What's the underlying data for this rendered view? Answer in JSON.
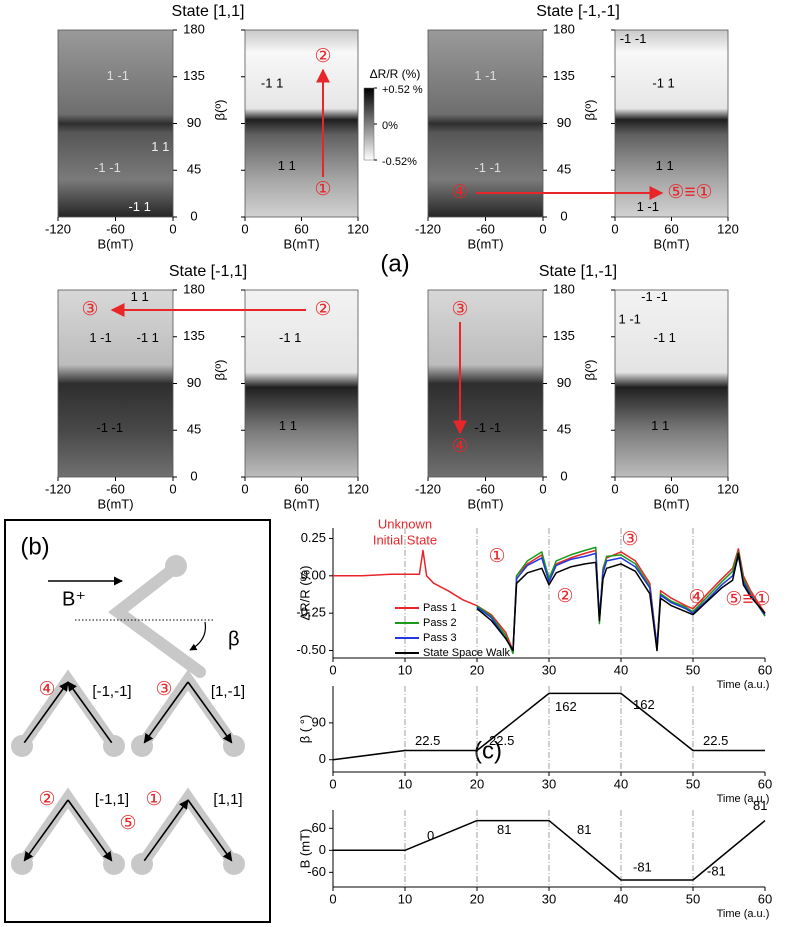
{
  "panel_labels": [
    "(a)",
    "(b)",
    "(c)"
  ],
  "chart_data": [
    {
      "type": "heatmap",
      "title": "State [1,1]",
      "ylim": [
        0,
        180
      ],
      "yticks": [
        0,
        45,
        90,
        135,
        180
      ],
      "ylabel": "β(º)",
      "panels": [
        {
          "xlim": [
            -120,
            0
          ],
          "xticks": [
            -120,
            -60,
            0
          ],
          "xlabel": "B(mT)",
          "labels": [
            "1 -1",
            "-1 -1",
            "1 1",
            "-1 1"
          ]
        },
        {
          "xlim": [
            0,
            120
          ],
          "xticks": [
            0,
            60,
            120
          ],
          "xlabel": "B(mT)",
          "labels": [
            "-1 1",
            "1 1"
          ]
        }
      ],
      "markers": [
        "①",
        "②"
      ],
      "colorbar": {
        "label": "ΔR/R (%)",
        "lim": [
          -0.52,
          0.52
        ],
        "ticks": [
          {
            "value": 0.52,
            "label": "+0.52 %"
          },
          {
            "value": 0,
            "label": "0%"
          },
          {
            "value": -0.52,
            "label": "-0.52%"
          }
        ]
      }
    },
    {
      "type": "heatmap",
      "title": "State [-1,-1]",
      "ylim": [
        0,
        180
      ],
      "yticks": [
        0,
        45,
        90,
        135,
        180
      ],
      "ylabel": "β(º)",
      "panels": [
        {
          "xlim": [
            -120,
            0
          ],
          "xticks": [
            -120,
            -60,
            0
          ],
          "xlabel": "B(mT)",
          "labels": [
            "1 -1",
            "-1 -1"
          ]
        },
        {
          "xlim": [
            0,
            120
          ],
          "xticks": [
            0,
            60,
            120
          ],
          "xlabel": "B(mT)",
          "labels": [
            "-1 -1",
            "-1 1",
            "1 1",
            "1 -1"
          ]
        }
      ],
      "markers": [
        "④",
        "⑤≡①"
      ]
    },
    {
      "type": "heatmap",
      "title": "State [-1,1]",
      "ylim": [
        0,
        180
      ],
      "yticks": [
        0,
        45,
        90,
        135,
        180
      ],
      "ylabel": "β(º)",
      "panels": [
        {
          "xlim": [
            -120,
            0
          ],
          "xticks": [
            -120,
            -60,
            0
          ],
          "xlabel": "B(mT)",
          "labels": [
            "1 1",
            "1 -1",
            "-1 1",
            "-1 -1"
          ]
        },
        {
          "xlim": [
            0,
            120
          ],
          "xticks": [
            0,
            60,
            120
          ],
          "xlabel": "B(mT)",
          "labels": [
            "-1 1",
            "1 1"
          ]
        }
      ],
      "markers": [
        "③",
        "②"
      ]
    },
    {
      "type": "heatmap",
      "title": "State [1,-1]",
      "ylim": [
        0,
        180
      ],
      "yticks": [
        0,
        45,
        90,
        135,
        180
      ],
      "ylabel": "β(º)",
      "panels": [
        {
          "xlim": [
            -120,
            0
          ],
          "xticks": [
            -120,
            -60,
            0
          ],
          "xlabel": "B(mT)",
          "labels": [
            "-1 -1"
          ]
        },
        {
          "xlim": [
            0,
            120
          ],
          "xticks": [
            0,
            60,
            120
          ],
          "xlabel": "B(mT)",
          "labels": [
            "-1 -1",
            "1 -1",
            "-1 1",
            "1 1"
          ]
        }
      ],
      "markers": [
        "③",
        "④"
      ]
    },
    {
      "type": "line",
      "xlabel": "Time (a.u.)",
      "ylabel": "ΔR/R (%)",
      "xlim": [
        0,
        60
      ],
      "xticks": [
        0,
        10,
        20,
        30,
        40,
        50,
        60
      ],
      "ylim": [
        -0.55,
        0.32
      ],
      "yticks": [
        0.25,
        {
          "value": 0,
          "label": "0.00"
        },
        -0.25,
        {
          "value": -0.5,
          "label": "-0.50"
        }
      ],
      "grid": true,
      "legend": "lower left",
      "note": [
        "Unknown",
        "Initial State"
      ],
      "markers": [
        "①",
        "②",
        "③",
        "④",
        "⑤≡①"
      ],
      "x": [
        0,
        4,
        8,
        12,
        12.5,
        13,
        14,
        16,
        18,
        20,
        22,
        24,
        25,
        25.5,
        27,
        29,
        30,
        31,
        33,
        35,
        36.5,
        37,
        37.5,
        38,
        40,
        42,
        44,
        45,
        45.5,
        47,
        49,
        50,
        52,
        54,
        55.5,
        56.3,
        57,
        58,
        60
      ],
      "series": [
        {
          "name": "Pass 1",
          "color": "#e8262a",
          "values": [
            0,
            0,
            0.01,
            0.01,
            0.17,
            0.0,
            -0.05,
            -0.1,
            -0.16,
            -0.2,
            -0.26,
            -0.38,
            -0.5,
            0.0,
            0.08,
            0.14,
            -0.03,
            0.08,
            0.12,
            0.15,
            0.17,
            -0.3,
            0.05,
            0.12,
            0.16,
            0.1,
            -0.05,
            -0.48,
            -0.1,
            -0.15,
            -0.2,
            -0.22,
            -0.12,
            -0.02,
            0.05,
            0.18,
            0.0,
            -0.1,
            -0.25
          ]
        },
        {
          "name": "Pass 2",
          "color": "#1a9a1a",
          "values": [
            null,
            null,
            null,
            null,
            null,
            null,
            null,
            null,
            null,
            -0.2,
            -0.27,
            -0.4,
            -0.52,
            0.0,
            0.1,
            0.16,
            -0.02,
            0.1,
            0.14,
            0.17,
            0.19,
            -0.32,
            0.04,
            0.13,
            0.14,
            0.08,
            -0.07,
            -0.5,
            -0.12,
            -0.17,
            -0.21,
            -0.24,
            -0.14,
            -0.04,
            0.03,
            0.16,
            -0.02,
            -0.12,
            -0.27
          ]
        },
        {
          "name": "Pass 3",
          "color": "#2038e0",
          "values": [
            null,
            null,
            null,
            null,
            null,
            null,
            null,
            null,
            null,
            -0.21,
            -0.28,
            -0.42,
            -0.5,
            -0.02,
            0.07,
            0.12,
            -0.04,
            0.07,
            0.11,
            0.13,
            0.15,
            -0.28,
            0.02,
            0.1,
            0.12,
            0.06,
            -0.08,
            -0.47,
            -0.13,
            -0.18,
            -0.22,
            -0.25,
            -0.16,
            -0.06,
            0.0,
            0.13,
            -0.04,
            -0.13,
            -0.26
          ]
        },
        {
          "name": "State Space Walk",
          "color": "#000000",
          "values": [
            null,
            null,
            null,
            null,
            null,
            null,
            null,
            null,
            null,
            -0.22,
            -0.3,
            -0.42,
            -0.5,
            -0.05,
            0.02,
            0.05,
            -0.06,
            0.02,
            0.06,
            0.08,
            0.09,
            -0.3,
            -0.02,
            0.05,
            0.08,
            0.03,
            -0.12,
            -0.5,
            -0.15,
            -0.2,
            -0.24,
            -0.26,
            -0.17,
            -0.08,
            -0.03,
            0.15,
            -0.06,
            -0.14,
            -0.25
          ]
        }
      ]
    },
    {
      "type": "line",
      "xlabel": "Time (a.u.)",
      "ylabel": "β ( °)",
      "xlim": [
        0,
        60
      ],
      "xticks": [
        0,
        10,
        20,
        30,
        40,
        50,
        60
      ],
      "ylim": [
        -30,
        180
      ],
      "yticks": [
        0,
        90
      ],
      "grid": true,
      "x": [
        0,
        10,
        20,
        30,
        40,
        50,
        60
      ],
      "series": [
        {
          "color": "#000000",
          "values": [
            0,
            22.5,
            22.5,
            162,
            162,
            22.5,
            22.5
          ]
        }
      ]
    },
    {
      "type": "line",
      "xlabel": "Time (a.u.)",
      "ylabel": "B (mT)",
      "xlim": [
        0,
        60
      ],
      "xticks": [
        0,
        10,
        20,
        30,
        40,
        50,
        60
      ],
      "ylim": [
        -100,
        110
      ],
      "yticks": [
        -60,
        0,
        60
      ],
      "grid": true,
      "x": [
        0,
        10,
        20,
        30,
        40,
        50,
        60
      ],
      "series": [
        {
          "color": "#000000",
          "values": [
            0,
            0,
            81,
            81,
            -81,
            -81,
            81
          ]
        }
      ]
    }
  ],
  "schematic": {
    "field": "B⁺",
    "angle": "β",
    "states": [
      {
        "markers": [
          "④"
        ],
        "label": "[-1,-1]"
      },
      {
        "markers": [
          "③"
        ],
        "label": "[1,-1]"
      },
      {
        "markers": [
          "②"
        ],
        "label": "[-1,1]"
      },
      {
        "markers": [
          "⑤",
          "①"
        ],
        "label": "[1,1]"
      }
    ]
  }
}
